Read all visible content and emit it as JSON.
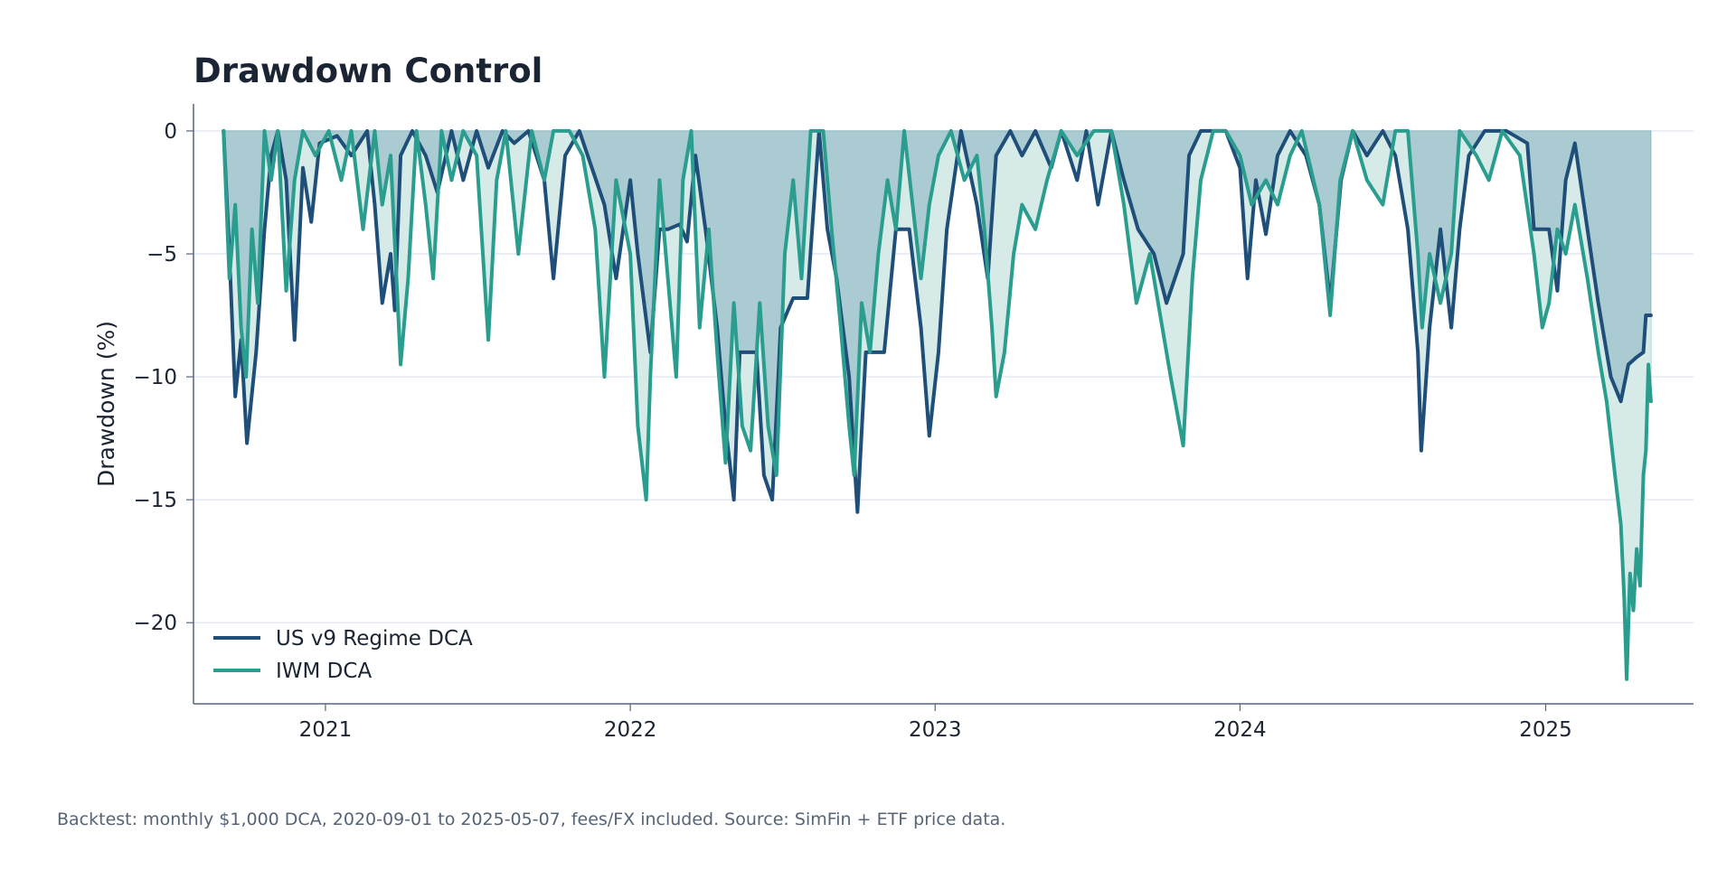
{
  "chart_data": {
    "type": "line",
    "title": "Drawdown Control",
    "xlabel": "",
    "ylabel": "Drawdown (%)",
    "x_ticks": [
      "2021",
      "2022",
      "2023",
      "2024",
      "2025"
    ],
    "y_ticks": [
      "0",
      "−5",
      "−10",
      "−15",
      "−20"
    ],
    "x_range": [
      "2020-07-27",
      "2025-06-27"
    ],
    "ylim": [
      -23.3,
      1.1
    ],
    "grid": "horizontal",
    "legend_position": "lower-left",
    "fill_between_series": true,
    "colors": {
      "us_v9": "#1f4e79",
      "iwm": "#2a9d8f",
      "fill_shallow": "#a9cbd1",
      "fill_deep": "#d6ebe8",
      "grid": "#dde3ec",
      "axis": "#56667a"
    },
    "series": [
      {
        "name": "US v9 Regime DCA",
        "points": [
          [
            "2020-09-01",
            0
          ],
          [
            "2020-09-08",
            -5
          ],
          [
            "2020-09-15",
            -10.8
          ],
          [
            "2020-09-22",
            -8.5
          ],
          [
            "2020-09-29",
            -12.7
          ],
          [
            "2020-10-10",
            -9
          ],
          [
            "2020-10-20",
            -4
          ],
          [
            "2020-10-28",
            -1
          ],
          [
            "2020-11-05",
            0
          ],
          [
            "2020-11-15",
            -2
          ],
          [
            "2020-11-25",
            -8.5
          ],
          [
            "2020-12-05",
            -1.5
          ],
          [
            "2020-12-15",
            -3.7
          ],
          [
            "2020-12-25",
            -0.5
          ],
          [
            "2021-01-15",
            -0.2
          ],
          [
            "2021-02-01",
            -1
          ],
          [
            "2021-02-20",
            0
          ],
          [
            "2021-03-01",
            -3
          ],
          [
            "2021-03-10",
            -7
          ],
          [
            "2021-03-20",
            -5
          ],
          [
            "2021-03-25",
            -7.3
          ],
          [
            "2021-04-01",
            -1
          ],
          [
            "2021-04-15",
            0
          ],
          [
            "2021-05-01",
            -1
          ],
          [
            "2021-05-15",
            -2.5
          ],
          [
            "2021-06-01",
            0
          ],
          [
            "2021-06-15",
            -2
          ],
          [
            "2021-07-01",
            0
          ],
          [
            "2021-07-15",
            -1.5
          ],
          [
            "2021-08-01",
            0
          ],
          [
            "2021-08-15",
            -0.5
          ],
          [
            "2021-09-01",
            0
          ],
          [
            "2021-09-20",
            -2
          ],
          [
            "2021-10-01",
            -6
          ],
          [
            "2021-10-15",
            -1
          ],
          [
            "2021-11-01",
            0
          ],
          [
            "2021-12-01",
            -3
          ],
          [
            "2021-12-15",
            -6
          ],
          [
            "2022-01-01",
            -2
          ],
          [
            "2022-01-10",
            -5
          ],
          [
            "2022-01-25",
            -9
          ],
          [
            "2022-02-05",
            -4
          ],
          [
            "2022-02-15",
            -4
          ],
          [
            "2022-03-01",
            -3.8
          ],
          [
            "2022-03-10",
            -4.5
          ],
          [
            "2022-03-20",
            -1
          ],
          [
            "2022-04-01",
            -4
          ],
          [
            "2022-04-15",
            -8
          ],
          [
            "2022-04-25",
            -12
          ],
          [
            "2022-05-05",
            -15
          ],
          [
            "2022-05-12",
            -9
          ],
          [
            "2022-06-01",
            -9
          ],
          [
            "2022-06-10",
            -14
          ],
          [
            "2022-06-20",
            -15
          ],
          [
            "2022-06-30",
            -8
          ],
          [
            "2022-07-15",
            -6.8
          ],
          [
            "2022-08-01",
            -6.8
          ],
          [
            "2022-08-15",
            0
          ],
          [
            "2022-08-25",
            -4
          ],
          [
            "2022-09-05",
            -6
          ],
          [
            "2022-09-20",
            -10
          ],
          [
            "2022-09-30",
            -15.5
          ],
          [
            "2022-10-10",
            -9
          ],
          [
            "2022-11-01",
            -9
          ],
          [
            "2022-11-15",
            -4
          ],
          [
            "2022-12-01",
            -4
          ],
          [
            "2022-12-15",
            -8
          ],
          [
            "2022-12-25",
            -12.4
          ],
          [
            "2023-01-05",
            -9
          ],
          [
            "2023-01-15",
            -4
          ],
          [
            "2023-02-01",
            0
          ],
          [
            "2023-02-20",
            -3
          ],
          [
            "2023-03-05",
            -6
          ],
          [
            "2023-03-15",
            -1
          ],
          [
            "2023-04-01",
            0
          ],
          [
            "2023-04-15",
            -1
          ],
          [
            "2023-05-01",
            0
          ],
          [
            "2023-05-20",
            -1.5
          ],
          [
            "2023-06-01",
            0
          ],
          [
            "2023-06-20",
            -2
          ],
          [
            "2023-07-01",
            0
          ],
          [
            "2023-07-15",
            -3
          ],
          [
            "2023-07-31",
            0
          ],
          [
            "2023-08-15",
            -2
          ],
          [
            "2023-09-01",
            -4
          ],
          [
            "2023-09-20",
            -5
          ],
          [
            "2023-10-05",
            -7
          ],
          [
            "2023-10-25",
            -5
          ],
          [
            "2023-11-01",
            -1
          ],
          [
            "2023-11-15",
            0
          ],
          [
            "2023-12-15",
            0
          ],
          [
            "2024-01-01",
            -1.5
          ],
          [
            "2024-01-10",
            -6
          ],
          [
            "2024-01-20",
            -2
          ],
          [
            "2024-02-01",
            -4.2
          ],
          [
            "2024-02-15",
            -1
          ],
          [
            "2024-03-01",
            0
          ],
          [
            "2024-03-20",
            -1
          ],
          [
            "2024-04-05",
            -3
          ],
          [
            "2024-04-18",
            -7
          ],
          [
            "2024-05-01",
            -2
          ],
          [
            "2024-05-15",
            0
          ],
          [
            "2024-06-01",
            -1
          ],
          [
            "2024-06-20",
            0
          ],
          [
            "2024-07-05",
            -1
          ],
          [
            "2024-07-20",
            -4
          ],
          [
            "2024-08-01",
            -9
          ],
          [
            "2024-08-05",
            -13
          ],
          [
            "2024-08-15",
            -8
          ],
          [
            "2024-08-28",
            -4
          ],
          [
            "2024-09-10",
            -8
          ],
          [
            "2024-09-20",
            -4
          ],
          [
            "2024-10-01",
            -1
          ],
          [
            "2024-10-20",
            0
          ],
          [
            "2024-11-15",
            0
          ],
          [
            "2024-12-10",
            -0.5
          ],
          [
            "2024-12-18",
            -4
          ],
          [
            "2025-01-05",
            -4
          ],
          [
            "2025-01-15",
            -6.5
          ],
          [
            "2025-01-25",
            -2
          ],
          [
            "2025-02-05",
            -0.5
          ],
          [
            "2025-02-20",
            -4
          ],
          [
            "2025-03-05",
            -7
          ],
          [
            "2025-03-20",
            -10
          ],
          [
            "2025-04-01",
            -11
          ],
          [
            "2025-04-10",
            -9.5
          ],
          [
            "2025-04-20",
            -9.2
          ],
          [
            "2025-04-28",
            -9
          ],
          [
            "2025-05-01",
            -7.5
          ],
          [
            "2025-05-07",
            -7.5
          ]
        ]
      },
      {
        "name": "IWM DCA",
        "points": [
          [
            "2020-09-01",
            0
          ],
          [
            "2020-09-08",
            -6
          ],
          [
            "2020-09-15",
            -3
          ],
          [
            "2020-09-22",
            -8
          ],
          [
            "2020-09-28",
            -10
          ],
          [
            "2020-10-05",
            -4
          ],
          [
            "2020-10-12",
            -7
          ],
          [
            "2020-10-20",
            0
          ],
          [
            "2020-10-28",
            -2
          ],
          [
            "2020-11-05",
            0
          ],
          [
            "2020-11-15",
            -6.5
          ],
          [
            "2020-11-25",
            -2
          ],
          [
            "2020-12-05",
            0
          ],
          [
            "2020-12-20",
            -1
          ],
          [
            "2021-01-05",
            0
          ],
          [
            "2021-01-20",
            -2
          ],
          [
            "2021-02-01",
            0
          ],
          [
            "2021-02-15",
            -4
          ],
          [
            "2021-03-01",
            0
          ],
          [
            "2021-03-10",
            -3
          ],
          [
            "2021-03-20",
            -1
          ],
          [
            "2021-04-01",
            -9.5
          ],
          [
            "2021-04-10",
            -6
          ],
          [
            "2021-04-20",
            0
          ],
          [
            "2021-05-01",
            -3
          ],
          [
            "2021-05-10",
            -6
          ],
          [
            "2021-05-20",
            0
          ],
          [
            "2021-06-01",
            -2
          ],
          [
            "2021-06-15",
            0
          ],
          [
            "2021-07-01",
            -1
          ],
          [
            "2021-07-15",
            -8.5
          ],
          [
            "2021-07-25",
            -2
          ],
          [
            "2021-08-05",
            0
          ],
          [
            "2021-08-20",
            -5
          ],
          [
            "2021-09-05",
            0
          ],
          [
            "2021-09-20",
            -2
          ],
          [
            "2021-10-01",
            0
          ],
          [
            "2021-10-20",
            0
          ],
          [
            "2021-11-05",
            -1
          ],
          [
            "2021-11-20",
            -4
          ],
          [
            "2021-12-01",
            -10
          ],
          [
            "2021-12-15",
            -2
          ],
          [
            "2022-01-01",
            -5
          ],
          [
            "2022-01-10",
            -12
          ],
          [
            "2022-01-20",
            -15
          ],
          [
            "2022-01-25",
            -10
          ],
          [
            "2022-02-05",
            -2
          ],
          [
            "2022-02-15",
            -6
          ],
          [
            "2022-02-25",
            -10
          ],
          [
            "2022-03-05",
            -2
          ],
          [
            "2022-03-15",
            0
          ],
          [
            "2022-03-25",
            -8
          ],
          [
            "2022-04-05",
            -4
          ],
          [
            "2022-04-15",
            -9
          ],
          [
            "2022-04-25",
            -13.5
          ],
          [
            "2022-05-05",
            -7
          ],
          [
            "2022-05-15",
            -12
          ],
          [
            "2022-05-25",
            -13
          ],
          [
            "2022-06-05",
            -7
          ],
          [
            "2022-06-15",
            -12
          ],
          [
            "2022-06-25",
            -14
          ],
          [
            "2022-07-05",
            -5
          ],
          [
            "2022-07-15",
            -2
          ],
          [
            "2022-07-25",
            -6
          ],
          [
            "2022-08-05",
            0
          ],
          [
            "2022-08-20",
            0
          ],
          [
            "2022-08-30",
            -4
          ],
          [
            "2022-09-10",
            -8
          ],
          [
            "2022-09-20",
            -12
          ],
          [
            "2022-09-26",
            -14
          ],
          [
            "2022-10-05",
            -7
          ],
          [
            "2022-10-15",
            -9
          ],
          [
            "2022-10-25",
            -5
          ],
          [
            "2022-11-05",
            -2
          ],
          [
            "2022-11-15",
            -4
          ],
          [
            "2022-11-25",
            0
          ],
          [
            "2022-12-05",
            -3
          ],
          [
            "2022-12-15",
            -6
          ],
          [
            "2022-12-25",
            -3
          ],
          [
            "2023-01-05",
            -1
          ],
          [
            "2023-01-20",
            0
          ],
          [
            "2023-02-05",
            -2
          ],
          [
            "2023-02-20",
            -1
          ],
          [
            "2023-03-01",
            -4
          ],
          [
            "2023-03-10",
            -8
          ],
          [
            "2023-03-15",
            -10.8
          ],
          [
            "2023-03-25",
            -9
          ],
          [
            "2023-04-05",
            -5
          ],
          [
            "2023-04-15",
            -3
          ],
          [
            "2023-05-01",
            -4
          ],
          [
            "2023-05-15",
            -2
          ],
          [
            "2023-06-01",
            0
          ],
          [
            "2023-06-20",
            -1
          ],
          [
            "2023-07-10",
            0
          ],
          [
            "2023-07-31",
            0
          ],
          [
            "2023-08-15",
            -3
          ],
          [
            "2023-08-30",
            -7
          ],
          [
            "2023-09-15",
            -5
          ],
          [
            "2023-09-30",
            -8
          ],
          [
            "2023-10-10",
            -10
          ],
          [
            "2023-10-25",
            -12.8
          ],
          [
            "2023-11-05",
            -6
          ],
          [
            "2023-11-15",
            -2
          ],
          [
            "2023-11-30",
            0
          ],
          [
            "2023-12-15",
            0
          ],
          [
            "2024-01-01",
            -1
          ],
          [
            "2024-01-15",
            -3
          ],
          [
            "2024-02-01",
            -2
          ],
          [
            "2024-02-15",
            -3
          ],
          [
            "2024-03-01",
            -1
          ],
          [
            "2024-03-15",
            0
          ],
          [
            "2024-04-05",
            -3
          ],
          [
            "2024-04-18",
            -7.5
          ],
          [
            "2024-04-30",
            -2
          ],
          [
            "2024-05-15",
            0
          ],
          [
            "2024-06-01",
            -2
          ],
          [
            "2024-06-20",
            -3
          ],
          [
            "2024-07-05",
            0
          ],
          [
            "2024-07-20",
            0
          ],
          [
            "2024-08-01",
            -5
          ],
          [
            "2024-08-06",
            -8
          ],
          [
            "2024-08-15",
            -5
          ],
          [
            "2024-08-28",
            -7
          ],
          [
            "2024-09-10",
            -5
          ],
          [
            "2024-09-20",
            0
          ],
          [
            "2024-10-10",
            -1
          ],
          [
            "2024-10-25",
            -2
          ],
          [
            "2024-11-10",
            0
          ],
          [
            "2024-12-01",
            -1
          ],
          [
            "2024-12-18",
            -5
          ],
          [
            "2024-12-28",
            -8
          ],
          [
            "2025-01-05",
            -7
          ],
          [
            "2025-01-15",
            -4
          ],
          [
            "2025-01-25",
            -5
          ],
          [
            "2025-02-05",
            -3
          ],
          [
            "2025-02-20",
            -6
          ],
          [
            "2025-03-05",
            -9
          ],
          [
            "2025-03-15",
            -11
          ],
          [
            "2025-03-25",
            -14
          ],
          [
            "2025-04-01",
            -16
          ],
          [
            "2025-04-05",
            -19
          ],
          [
            "2025-04-08",
            -22.3
          ],
          [
            "2025-04-12",
            -18
          ],
          [
            "2025-04-16",
            -19.5
          ],
          [
            "2025-04-20",
            -17
          ],
          [
            "2025-04-24",
            -18.5
          ],
          [
            "2025-04-28",
            -14
          ],
          [
            "2025-05-01",
            -13
          ],
          [
            "2025-05-04",
            -9.5
          ],
          [
            "2025-05-07",
            -11
          ]
        ]
      }
    ]
  },
  "footnote": "Backtest: monthly $1,000 DCA, 2020-09-01 to 2025-05-07, fees/FX included. Source: SimFin + ETF price data."
}
